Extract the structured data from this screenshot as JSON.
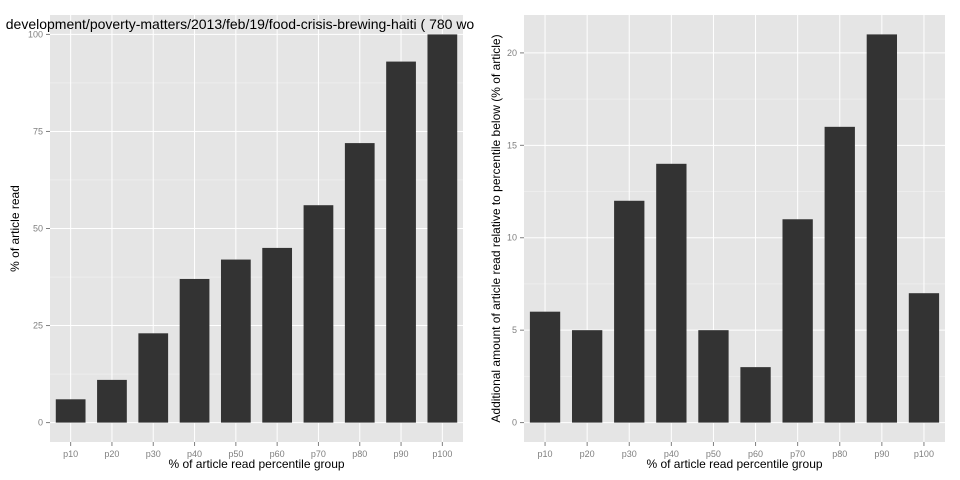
{
  "chart_data": [
    {
      "type": "bar",
      "title": "development/poverty-matters/2013/feb/19/food-crisis-brewing-haiti ( 780 wo",
      "xlabel": "% of article read percentile group",
      "ylabel": "% of article read",
      "categories": [
        "p10",
        "p20",
        "p30",
        "p40",
        "p50",
        "p60",
        "p70",
        "p80",
        "p90",
        "p100"
      ],
      "values": [
        6,
        11,
        23,
        37,
        42,
        45,
        56,
        72,
        93,
        100
      ],
      "ylim": [
        -5,
        105
      ],
      "yticks": [
        0,
        25,
        50,
        75,
        100
      ],
      "grid": true,
      "bar_color": "#333333",
      "panel_color": "#e5e5e5"
    },
    {
      "type": "bar",
      "title": "",
      "xlabel": "% of article read percentile group",
      "ylabel": "Additional amount of article read relative to percentile below (% of article)",
      "categories": [
        "p10",
        "p20",
        "p30",
        "p40",
        "p50",
        "p60",
        "p70",
        "p80",
        "p90",
        "p100"
      ],
      "values": [
        6,
        5,
        12,
        14,
        5,
        3,
        11,
        16,
        21,
        7
      ],
      "ylim": [
        -1.05,
        22.05
      ],
      "yticks": [
        0,
        5,
        10,
        15,
        20
      ],
      "grid": true,
      "bar_color": "#333333",
      "panel_color": "#e5e5e5"
    }
  ]
}
